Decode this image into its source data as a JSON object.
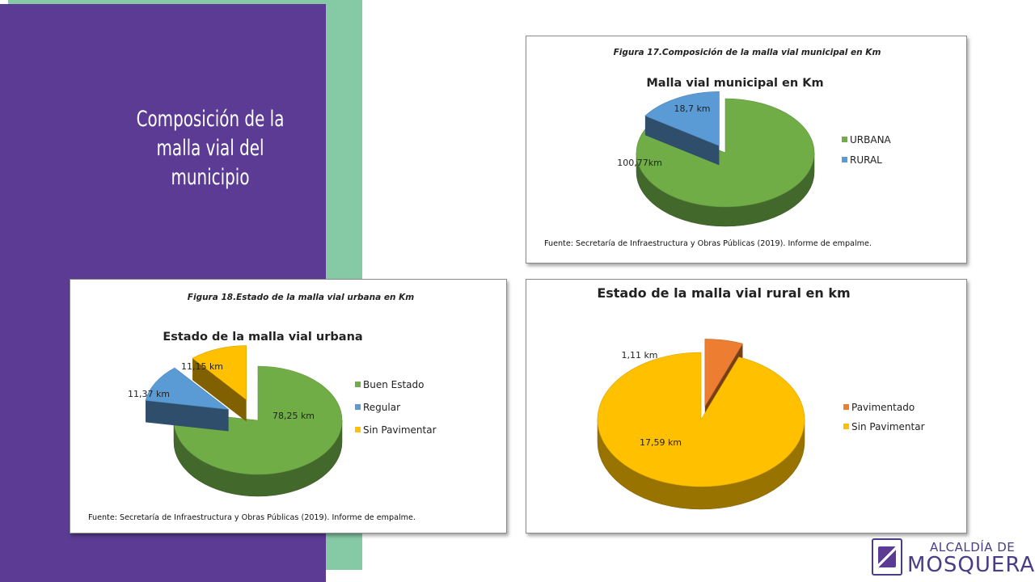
{
  "slide": {
    "title": "Composición de la malla vial del municipio"
  },
  "logo": {
    "line1": "ALCALDÍA DE",
    "line2": "MOSQUERA"
  },
  "colors": {
    "purple": "#5b3b93",
    "mint": "#86c9a5",
    "green": "#70ad47",
    "blue": "#5b9bd5",
    "yellow": "#ffc000",
    "orange": "#ed7d31"
  },
  "chart_data": [
    {
      "type": "pie",
      "figure_label": "Figura 17.Composición de la malla vial municipal en Km",
      "title": "Malla vial municipal en Km",
      "source": "Fuente: Secretaría de Infraestructura y Obras Públicas (2019). Informe de empalme.",
      "legend_position": "right",
      "slices": [
        {
          "name": "URBANA",
          "value": 100.77,
          "label": "100,77km",
          "color": "#70ad47",
          "exploded": false
        },
        {
          "name": "RURAL",
          "value": 18.7,
          "label": "18,7 km",
          "color": "#5b9bd5",
          "exploded": true
        }
      ]
    },
    {
      "type": "pie",
      "figure_label": "Figura 18.Estado de la malla vial urbana en Km",
      "title": "Estado de la malla vial urbana",
      "source": "Fuente: Secretaría de Infraestructura y Obras Públicas (2019). Informe de empalme.",
      "legend_position": "right",
      "slices": [
        {
          "name": "Buen Estado",
          "value": 78.25,
          "label": "78,25 km",
          "color": "#70ad47",
          "exploded": false
        },
        {
          "name": "Regular",
          "value": 11.37,
          "label": "11,37 km",
          "color": "#5b9bd5",
          "exploded": true
        },
        {
          "name": "Sin Pavimentar",
          "value": 11.15,
          "label": "11,15 km",
          "color": "#ffc000",
          "exploded": true
        }
      ]
    },
    {
      "type": "pie",
      "figure_label": "",
      "title": "Estado de la malla vial rural en km",
      "source": "",
      "legend_position": "right",
      "slices": [
        {
          "name": "Pavimentado",
          "value": 1.11,
          "label": "1,11 km",
          "color": "#ed7d31",
          "exploded": true
        },
        {
          "name": "Sin Pavimentar",
          "value": 17.59,
          "label": "17,59 km",
          "color": "#ffc000",
          "exploded": false
        }
      ]
    }
  ]
}
